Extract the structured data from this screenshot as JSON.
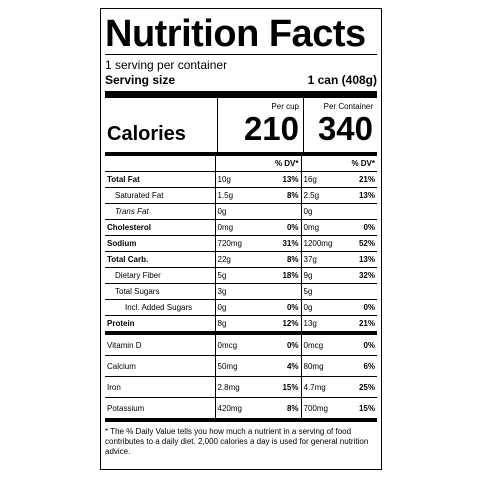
{
  "title": "Nutrition Facts",
  "servings_per_container": "1 serving per container",
  "serving_size_label": "Serving size",
  "serving_size_value": "1 can (408g)",
  "calories_label": "Calories",
  "col1_header": "Per cup",
  "col2_header": "Per Container",
  "calories_per_cup": "210",
  "calories_per_container": "340",
  "dv_header": "% DV*",
  "nutrients": [
    {
      "name": "Total Fat",
      "cup_amount": "10g",
      "cup_dv": "13%",
      "container_amount": "16g",
      "container_dv": "21%"
    },
    {
      "name": "Saturated Fat",
      "cup_amount": "1.5g",
      "cup_dv": "8%",
      "container_amount": "2.5g",
      "container_dv": "13%"
    },
    {
      "name": "Trans Fat",
      "cup_amount": "0g",
      "cup_dv": "",
      "container_amount": "0g",
      "container_dv": ""
    },
    {
      "name": "Cholesterol",
      "cup_amount": "0mg",
      "cup_dv": "0%",
      "container_amount": "0mg",
      "container_dv": "0%"
    },
    {
      "name": "Sodium",
      "cup_amount": "720mg",
      "cup_dv": "31%",
      "container_amount": "1200mg",
      "container_dv": "52%"
    },
    {
      "name": "Total Carb.",
      "cup_amount": "22g",
      "cup_dv": "8%",
      "container_amount": "37g",
      "container_dv": "13%"
    },
    {
      "name": "Dietary Fiber",
      "cup_amount": "5g",
      "cup_dv": "18%",
      "container_amount": "9g",
      "container_dv": "32%"
    },
    {
      "name": "Total Sugars",
      "cup_amount": "3g",
      "cup_dv": "",
      "container_amount": "5g",
      "container_dv": ""
    },
    {
      "name": "Incl. Added Sugars",
      "cup_amount": "0g",
      "cup_dv": "0%",
      "container_amount": "0g",
      "container_dv": "0%"
    },
    {
      "name": "Protein",
      "cup_amount": "8g",
      "cup_dv": "12%",
      "container_amount": "13g",
      "container_dv": "21%"
    }
  ],
  "vitamins": [
    {
      "name": "Vitamin D",
      "cup_amount": "0mcg",
      "cup_dv": "0%",
      "container_amount": "0mcg",
      "container_dv": "0%"
    },
    {
      "name": "Calcium",
      "cup_amount": "50mg",
      "cup_dv": "4%",
      "container_amount": "80mg",
      "container_dv": "6%"
    },
    {
      "name": "Iron",
      "cup_amount": "2.8mg",
      "cup_dv": "15%",
      "container_amount": "4.7mg",
      "container_dv": "25%"
    },
    {
      "name": "Potassium",
      "cup_amount": "420mg",
      "cup_dv": "8%",
      "container_amount": "700mg",
      "container_dv": "15%"
    }
  ],
  "footnote": "* The % Daily Value tells you how much a nutrient in a serving of food contributes to a daily diet. 2,000 calories a day is used for general nutrition advice."
}
